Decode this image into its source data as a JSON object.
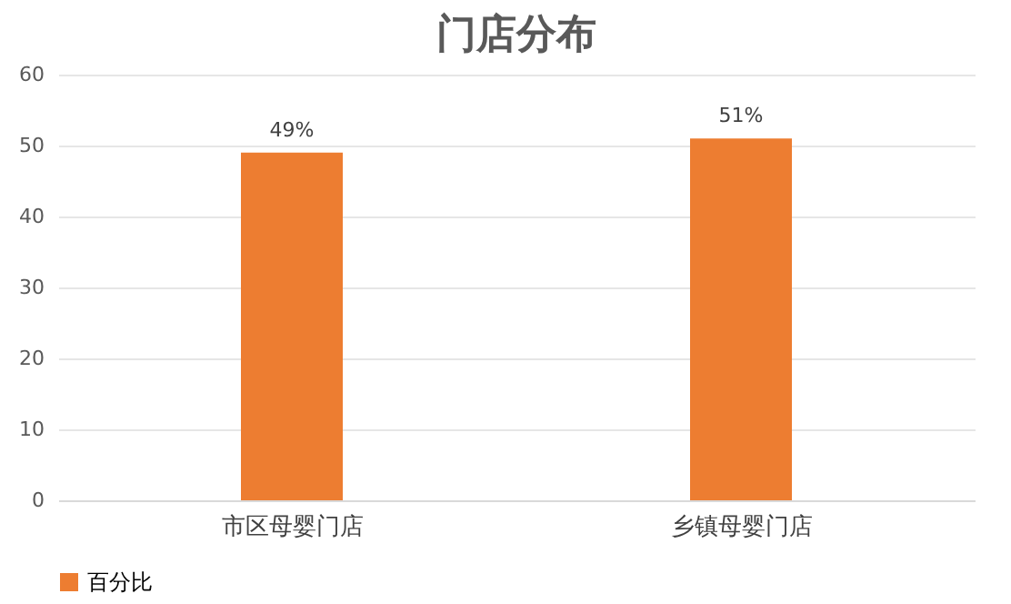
{
  "chart_data": {
    "type": "bar",
    "title": "门店分布",
    "categories": [
      "市区母婴门店",
      "乡镇母婴门店"
    ],
    "series": [
      {
        "name": "百分比",
        "color": "#ed7d31",
        "values": [
          49,
          51
        ],
        "value_labels": [
          "49%",
          "51%"
        ]
      }
    ],
    "ylim": [
      0,
      60
    ],
    "yticks": [
      0,
      10,
      20,
      30,
      40,
      50,
      60
    ],
    "grid": "y",
    "legend": "bottom"
  }
}
